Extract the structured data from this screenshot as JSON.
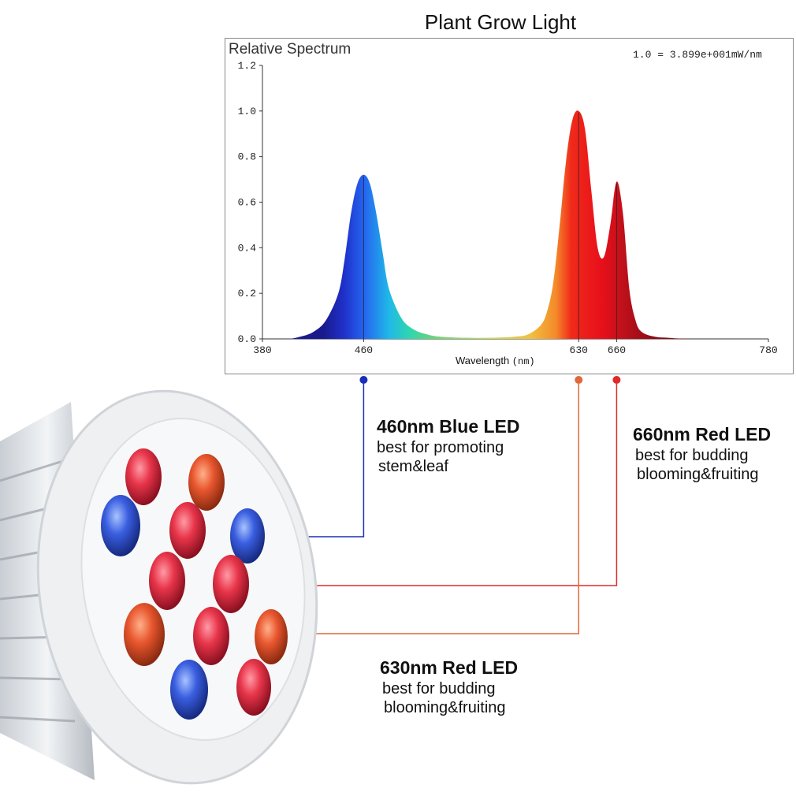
{
  "chart_data": {
    "type": "area",
    "title": "Plant Grow Light",
    "ylabel": "Relative Spectrum",
    "xlabel": "Wavelength",
    "xunit": "(nm)",
    "scale_note": "1.0 = 3.899e+001mW/nm",
    "xlim": [
      380,
      780
    ],
    "ylim": [
      0,
      1.2
    ],
    "x_ticks": [
      380,
      460,
      630,
      660,
      780
    ],
    "y_ticks": [
      "0.0",
      "0.2",
      "0.4",
      "0.6",
      "0.8",
      "1.0",
      "1.2"
    ],
    "grid": false,
    "series": [
      {
        "x": [
          380,
          400,
          410,
          420,
          430,
          440,
          445,
          450,
          455,
          460,
          465,
          470,
          475,
          480,
          490,
          500,
          510,
          520,
          540,
          560,
          580,
          590,
          600,
          605,
          610,
          615,
          620,
          625,
          630,
          635,
          640,
          645,
          650,
          655,
          660,
          665,
          670,
          675,
          680,
          690,
          700,
          720,
          780
        ],
        "y": [
          0.0,
          0.0,
          0.01,
          0.03,
          0.08,
          0.2,
          0.35,
          0.55,
          0.68,
          0.72,
          0.68,
          0.55,
          0.38,
          0.22,
          0.09,
          0.04,
          0.02,
          0.01,
          0.005,
          0.005,
          0.01,
          0.02,
          0.06,
          0.12,
          0.25,
          0.5,
          0.78,
          0.96,
          1.0,
          0.92,
          0.65,
          0.4,
          0.36,
          0.5,
          0.69,
          0.55,
          0.22,
          0.08,
          0.03,
          0.01,
          0.005,
          0.0,
          0.0
        ]
      }
    ],
    "markers": [
      {
        "x": 460,
        "color": "#1a2fb8"
      },
      {
        "x": 630,
        "color": "#e0683a"
      },
      {
        "x": 660,
        "color": "#e02a2a"
      }
    ]
  },
  "annotations": {
    "blue": {
      "head": "460nm Blue LED",
      "line1": "best for promoting",
      "line2": "stem&leaf"
    },
    "red660": {
      "head": "660nm Red LED",
      "line1": "best for budding",
      "line2": "blooming&fruiting"
    },
    "red630": {
      "head": "630nm Red LED",
      "line1": "best for budding",
      "line2": "blooming&fruiting"
    }
  },
  "colors": {
    "blue_led": "#2f50d8",
    "red_led": "#e8354a",
    "orange_led": "#e85a30",
    "blue_line": "#1a2fb8",
    "red_line": "#e02a2a",
    "orange_line": "#e0683a"
  },
  "icons": {
    "lamp": "led-grow-light-bulb-icon"
  }
}
